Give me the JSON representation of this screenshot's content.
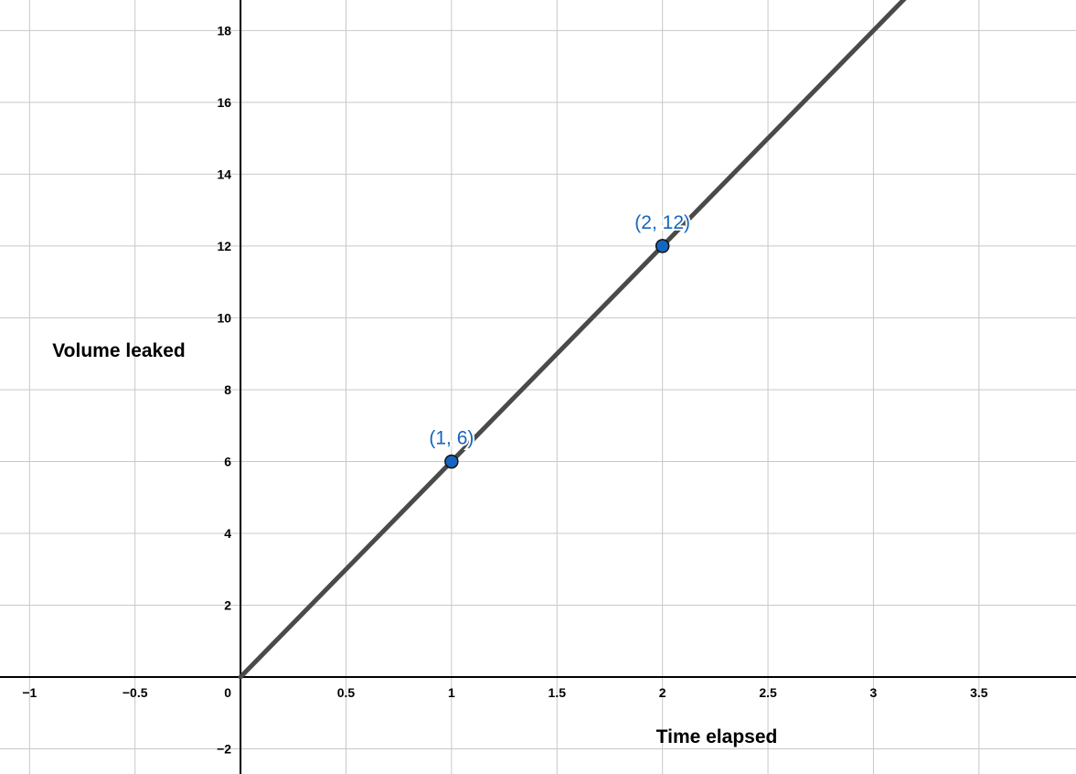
{
  "chart_data": {
    "type": "line",
    "title": "",
    "xlabel": "Time elapsed",
    "ylabel": "Volume leaked",
    "xlim": [
      -1.14,
      3.96
    ],
    "ylim": [
      -2.7,
      18.85
    ],
    "grid": true,
    "x_ticks": [
      {
        "value": -1,
        "label": "−1"
      },
      {
        "value": -0.5,
        "label": "−0.5"
      },
      {
        "value": 0,
        "label": "0"
      },
      {
        "value": 0.5,
        "label": "0.5"
      },
      {
        "value": 1,
        "label": "1"
      },
      {
        "value": 1.5,
        "label": "1.5"
      },
      {
        "value": 2,
        "label": "2"
      },
      {
        "value": 2.5,
        "label": "2.5"
      },
      {
        "value": 3,
        "label": "3"
      },
      {
        "value": 3.5,
        "label": "3.5"
      }
    ],
    "y_ticks": [
      {
        "value": -2,
        "label": "−2"
      },
      {
        "value": 2,
        "label": "2"
      },
      {
        "value": 4,
        "label": "4"
      },
      {
        "value": 6,
        "label": "6"
      },
      {
        "value": 8,
        "label": "8"
      },
      {
        "value": 10,
        "label": "10"
      },
      {
        "value": 12,
        "label": "12"
      },
      {
        "value": 14,
        "label": "14"
      },
      {
        "value": 16,
        "label": "16"
      },
      {
        "value": 18,
        "label": "18"
      }
    ],
    "series": [
      {
        "x": [
          0,
          3.15
        ],
        "y": [
          0,
          18.9
        ],
        "color": "#4a4a4a"
      }
    ],
    "points": [
      {
        "x": 1,
        "y": 6,
        "label": "(1, 6)"
      },
      {
        "x": 2,
        "y": 12,
        "label": "(2, 12)"
      }
    ],
    "colors": {
      "line": "#4a4a4a",
      "point": "#1565c0",
      "grid": "#c8c8c8",
      "axis": "#000000"
    }
  }
}
